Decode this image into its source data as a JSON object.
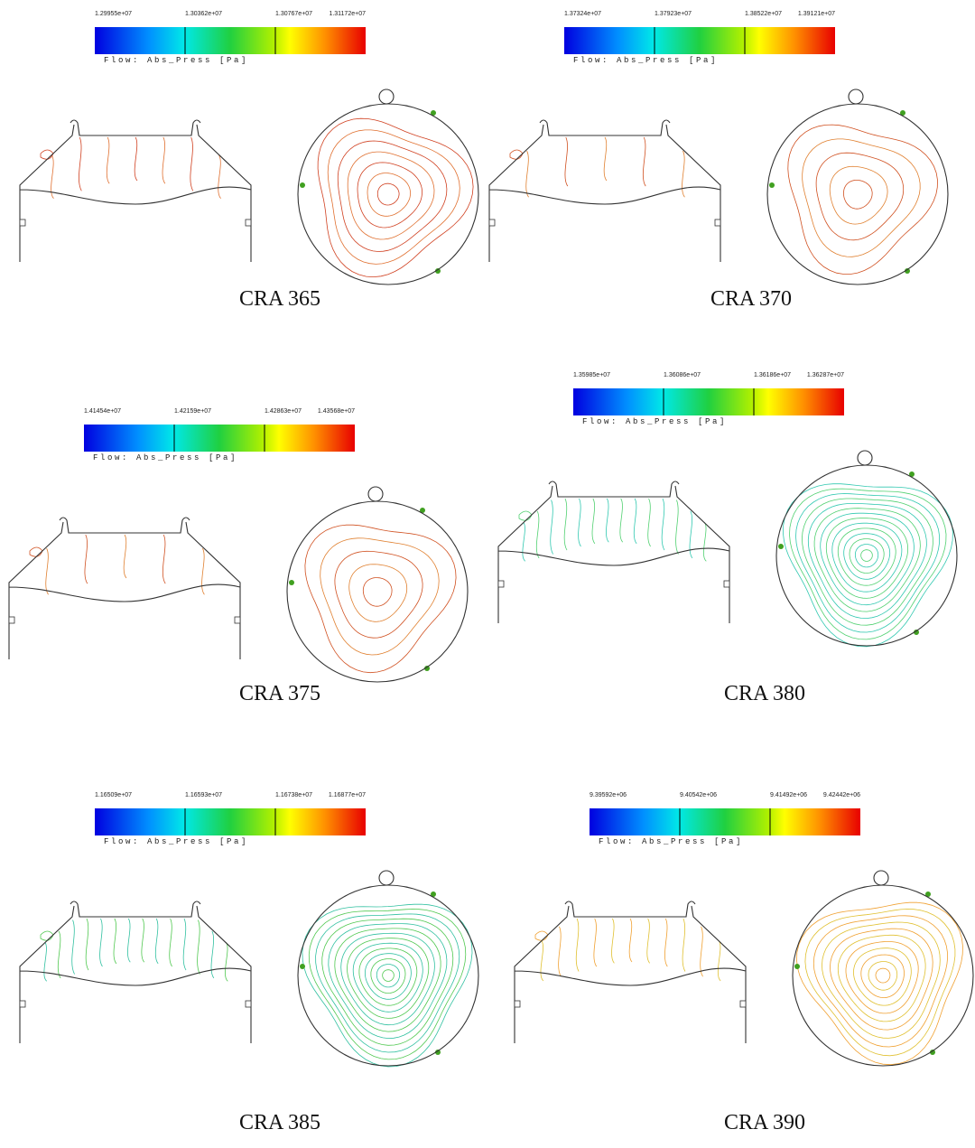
{
  "panels": [
    {
      "colorbar": {
        "ticks": [
          "1.29955e+07",
          "1.30362e+07",
          "1.30767e+07",
          "1.31172e+07"
        ],
        "label": "Flow: Abs_Press [Pa]"
      },
      "caption": "CRA 365"
    },
    {
      "colorbar": {
        "ticks": [
          "1.37324e+07",
          "1.37923e+07",
          "1.38522e+07",
          "1.39121e+07"
        ],
        "label": "Flow: Abs_Press [Pa]"
      },
      "caption": "CRA 370"
    },
    {
      "colorbar": {
        "ticks": [
          "1.41454e+07",
          "1.42159e+07",
          "1.42863e+07",
          "1.43568e+07"
        ],
        "label": "Flow: Abs_Press [Pa]"
      },
      "caption": "CRA 375"
    },
    {
      "colorbar": {
        "ticks": [
          "1.35985e+07",
          "1.36086e+07",
          "1.36186e+07",
          "1.36287e+07"
        ],
        "label": "Flow: Abs_Press [Pa]"
      },
      "caption": "CRA 380"
    },
    {
      "colorbar": {
        "ticks": [
          "1.16509e+07",
          "1.16593e+07",
          "1.16738e+07",
          "1.16877e+07"
        ],
        "label": "Flow: Abs_Press [Pa]"
      },
      "caption": "CRA 385"
    },
    {
      "colorbar": {
        "ticks": [
          "9.39592e+06",
          "9.40542e+06",
          "9.41492e+06",
          "9.42442e+06"
        ],
        "label": "Flow: Abs_Press [Pa]"
      },
      "caption": "CRA 390"
    }
  ]
}
